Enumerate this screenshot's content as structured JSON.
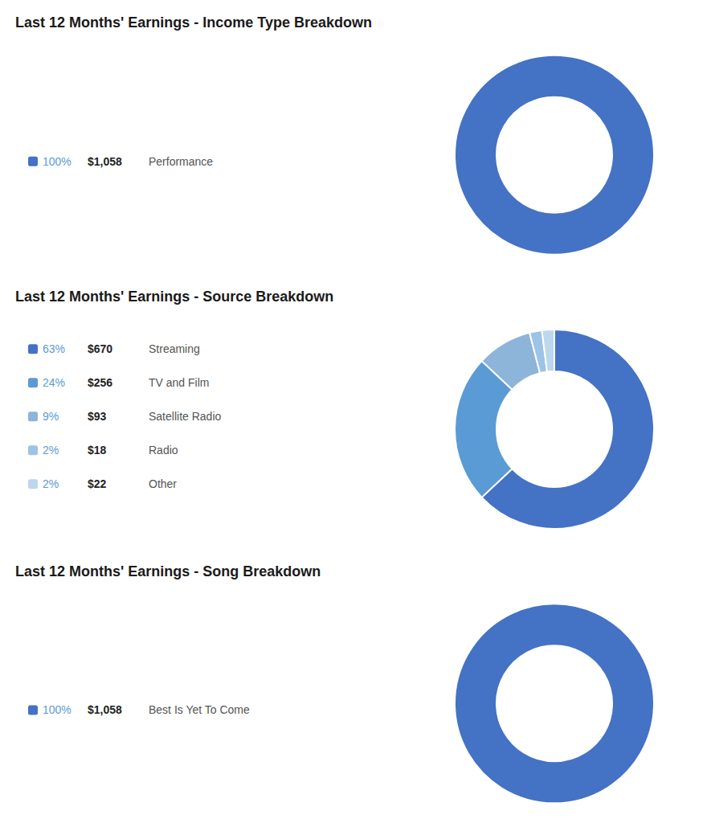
{
  "chart_data": [
    {
      "type": "pie",
      "title": "Last 12 Months' Earnings - Income Type Breakdown",
      "categories": [
        "Performance"
      ],
      "values": [
        100
      ],
      "value_labels": [
        "100%"
      ],
      "amounts": [
        1058
      ],
      "amount_labels": [
        "$1,058"
      ],
      "colors": [
        "#4472C4"
      ]
    },
    {
      "type": "pie",
      "title": "Last 12 Months' Earnings - Source Breakdown",
      "categories": [
        "Streaming",
        "TV and Film",
        "Satellite Radio",
        "Radio",
        "Other"
      ],
      "values": [
        63,
        24,
        9,
        2,
        2
      ],
      "value_labels": [
        "63%",
        "24%",
        "9%",
        "2%",
        "2%"
      ],
      "amounts": [
        670,
        256,
        93,
        18,
        22
      ],
      "amount_labels": [
        "$670",
        "$256",
        "$93",
        "$18",
        "$22"
      ],
      "colors": [
        "#4472C4",
        "#5B9BD5",
        "#8DB4D9",
        "#9DC3E6",
        "#BDD7EE"
      ]
    },
    {
      "type": "pie",
      "title": "Last 12 Months' Earnings - Song Breakdown",
      "categories": [
        "Best Is Yet To Come"
      ],
      "values": [
        100
      ],
      "value_labels": [
        "100%"
      ],
      "amounts": [
        1058
      ],
      "amount_labels": [
        "$1,058"
      ],
      "colors": [
        "#4472C4"
      ]
    }
  ]
}
